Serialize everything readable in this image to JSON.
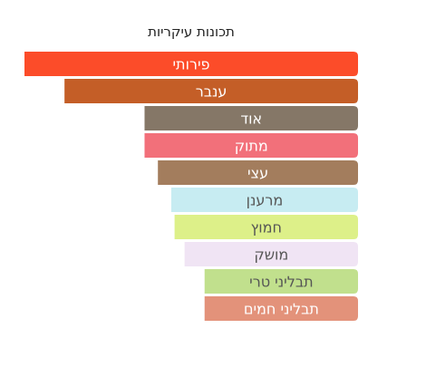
{
  "chart_data": {
    "type": "bar",
    "orientation": "horizontal",
    "title": "תכונות עיקריות",
    "xlabel": "",
    "ylabel": "",
    "grid": false,
    "legend": "none",
    "xlim": [
      0,
      100
    ],
    "categories": [
      "פירותי",
      "ענבר",
      "אוד",
      "מתוק",
      "עצי",
      "מרענן",
      "חמוץ",
      "מושק",
      "תבליני טרי",
      "תבליני חמים"
    ],
    "values": [
      100,
      88,
      64,
      64,
      60,
      56,
      55,
      52,
      46,
      46
    ],
    "colors": [
      "#fc4c29",
      "#c45e27",
      "#857767",
      "#f2707a",
      "#a37d5d",
      "#c7ecf2",
      "#ddf089",
      "#f0e4f4",
      "#c1e08d",
      "#e3927a"
    ],
    "label_colors": [
      "#ffffff",
      "#ffffff",
      "#ffffff",
      "#ffffff",
      "#ffffff",
      "#555555",
      "#555555",
      "#555555",
      "#555555",
      "#ffffff"
    ]
  }
}
